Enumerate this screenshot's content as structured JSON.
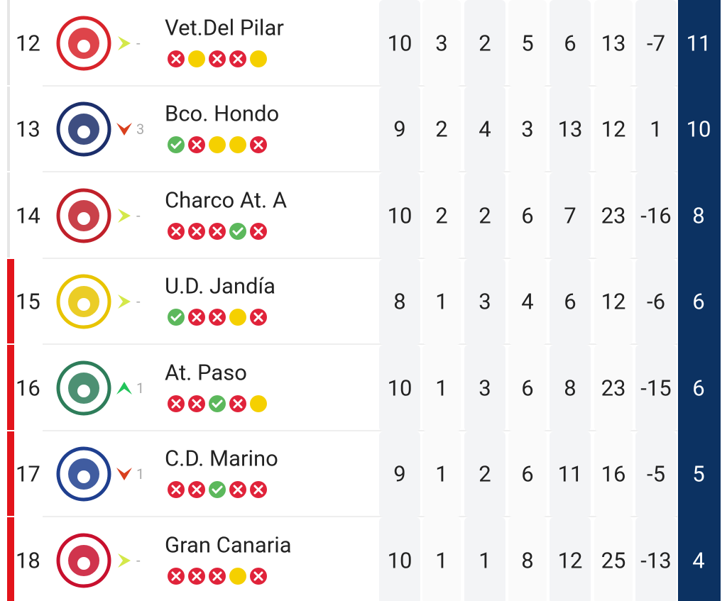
{
  "table": {
    "rows": [
      {
        "position": 12,
        "team": "Vet.Del Pilar",
        "trend": {
          "direction": "same",
          "label": "-"
        },
        "form": [
          "loss",
          "draw",
          "loss",
          "loss",
          "draw"
        ],
        "stats": [
          10,
          3,
          2,
          5,
          6,
          13,
          -7,
          11
        ],
        "relegation": false,
        "logo": "#d8232a"
      },
      {
        "position": 13,
        "team": "Bco. Hondo",
        "trend": {
          "direction": "down",
          "label": 3
        },
        "form": [
          "win",
          "loss",
          "draw",
          "draw",
          "loss"
        ],
        "stats": [
          9,
          2,
          4,
          3,
          13,
          12,
          1,
          10
        ],
        "relegation": false,
        "logo": "#1c2f6b"
      },
      {
        "position": 14,
        "team": "Charco At. A",
        "trend": {
          "direction": "same",
          "label": "-"
        },
        "form": [
          "loss",
          "loss",
          "loss",
          "win",
          "loss"
        ],
        "stats": [
          10,
          2,
          2,
          6,
          7,
          23,
          -16,
          8
        ],
        "relegation": false,
        "logo": "#c0202a"
      },
      {
        "position": 15,
        "team": "U.D. Jandía",
        "trend": {
          "direction": "same",
          "label": "-"
        },
        "form": [
          "win",
          "loss",
          "loss",
          "draw",
          "loss"
        ],
        "stats": [
          8,
          1,
          3,
          4,
          6,
          12,
          -6,
          6
        ],
        "relegation": true,
        "logo": "#e8c400"
      },
      {
        "position": 16,
        "team": "At. Paso",
        "trend": {
          "direction": "up",
          "label": 1
        },
        "form": [
          "loss",
          "loss",
          "win",
          "loss",
          "draw"
        ],
        "stats": [
          10,
          1,
          3,
          6,
          8,
          23,
          -15,
          6
        ],
        "relegation": true,
        "logo": "#2e7d5a"
      },
      {
        "position": 17,
        "team": "C.D. Marino",
        "trend": {
          "direction": "down",
          "label": 1
        },
        "form": [
          "loss",
          "loss",
          "win",
          "loss",
          "loss"
        ],
        "stats": [
          9,
          1,
          2,
          6,
          11,
          16,
          -5,
          5
        ],
        "relegation": true,
        "logo": "#1f3f8f"
      },
      {
        "position": 18,
        "team": "Gran Canaria",
        "trend": {
          "direction": "same",
          "label": "-"
        },
        "form": [
          "loss",
          "loss",
          "loss",
          "draw",
          "loss"
        ],
        "stats": [
          10,
          1,
          1,
          8,
          12,
          25,
          -13,
          4
        ],
        "relegation": true,
        "logo": "#c8102e"
      }
    ]
  }
}
